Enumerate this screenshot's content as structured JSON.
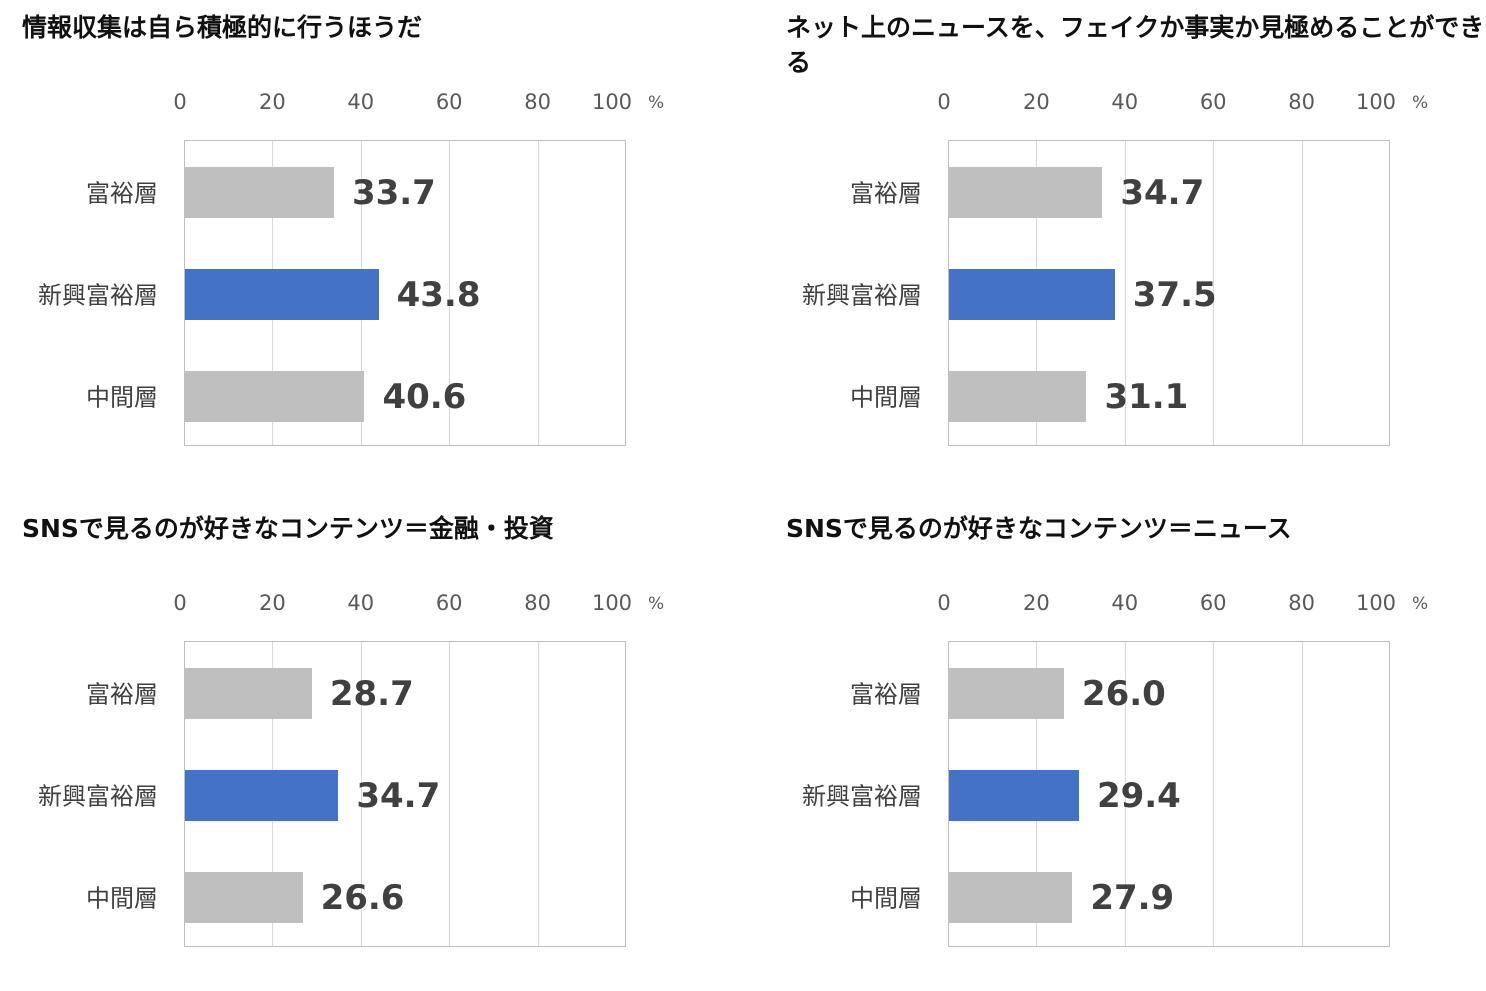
{
  "colors": {
    "highlight": "#4472c4",
    "other": "#bfbfbf"
  },
  "axis": {
    "ticks": [
      "0",
      "20",
      "40",
      "60",
      "80",
      "100"
    ],
    "unit": "%",
    "min": 0,
    "max": 100
  },
  "categories": [
    "富裕層",
    "新興富裕層",
    "中間層"
  ],
  "chart_data": [
    {
      "type": "bar",
      "orientation": "horizontal",
      "title": "情報収集は自ら積極的に行うほうだ",
      "categories": [
        "富裕層",
        "新興富裕層",
        "中間層"
      ],
      "values": [
        33.7,
        43.8,
        40.6
      ],
      "value_labels": [
        "33.7",
        "43.8",
        "40.6"
      ],
      "highlight_index": 1,
      "xlim": [
        0,
        100
      ],
      "xunit": "%",
      "grid": true
    },
    {
      "type": "bar",
      "orientation": "horizontal",
      "title": "ネット上のニュースを、フェイクか事実か見極めることができる",
      "categories": [
        "富裕層",
        "新興富裕層",
        "中間層"
      ],
      "values": [
        34.7,
        37.5,
        31.1
      ],
      "value_labels": [
        "34.7",
        "37.5",
        "31.1"
      ],
      "highlight_index": 1,
      "xlim": [
        0,
        100
      ],
      "xunit": "%",
      "grid": true
    },
    {
      "type": "bar",
      "orientation": "horizontal",
      "title": "SNSで見るのが好きなコンテンツ＝金融・投資",
      "categories": [
        "富裕層",
        "新興富裕層",
        "中間層"
      ],
      "values": [
        28.7,
        34.7,
        26.6
      ],
      "value_labels": [
        "28.7",
        "34.7",
        "26.6"
      ],
      "highlight_index": 1,
      "xlim": [
        0,
        100
      ],
      "xunit": "%",
      "grid": true
    },
    {
      "type": "bar",
      "orientation": "horizontal",
      "title": "SNSで見るのが好きなコンテンツ＝ニュース",
      "categories": [
        "富裕層",
        "新興富裕層",
        "中間層"
      ],
      "values": [
        26.0,
        29.4,
        27.9
      ],
      "value_labels": [
        "26.0",
        "29.4",
        "27.9"
      ],
      "highlight_index": 1,
      "xlim": [
        0,
        100
      ],
      "xunit": "%",
      "grid": true
    }
  ]
}
